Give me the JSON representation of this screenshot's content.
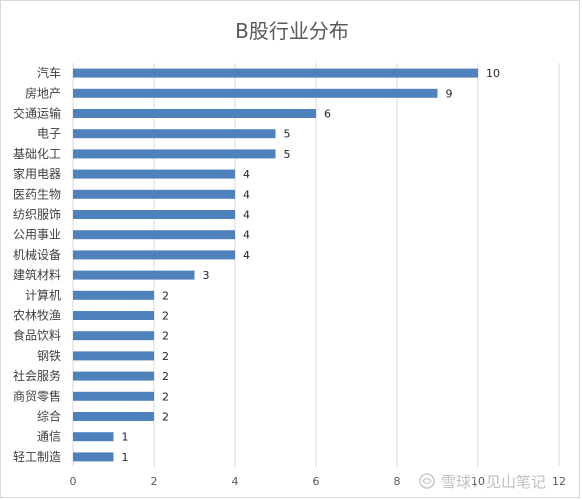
{
  "chart_data": {
    "type": "bar",
    "orientation": "horizontal",
    "title": "B股行业分布",
    "categories": [
      "汽车",
      "房地产",
      "交通运输",
      "电子",
      "基础化工",
      "家用电器",
      "医药生物",
      "纺织服饰",
      "公用事业",
      "机械设备",
      "建筑材料",
      "计算机",
      "农林牧渔",
      "食品饮料",
      "钢铁",
      "社会服务",
      "商贸零售",
      "综合",
      "通信",
      "轻工制造"
    ],
    "values": [
      10,
      9,
      6,
      5,
      5,
      4,
      4,
      4,
      4,
      4,
      3,
      2,
      2,
      2,
      2,
      2,
      2,
      2,
      1,
      1
    ],
    "xlim": [
      0,
      12
    ],
    "xticks": [
      "0",
      "2",
      "4",
      "6",
      "8",
      "10",
      "12"
    ],
    "grid": true,
    "bar_color": "#4f81bd",
    "data_labels": true
  },
  "watermark": {
    "text": "雪球：见山笔记"
  }
}
